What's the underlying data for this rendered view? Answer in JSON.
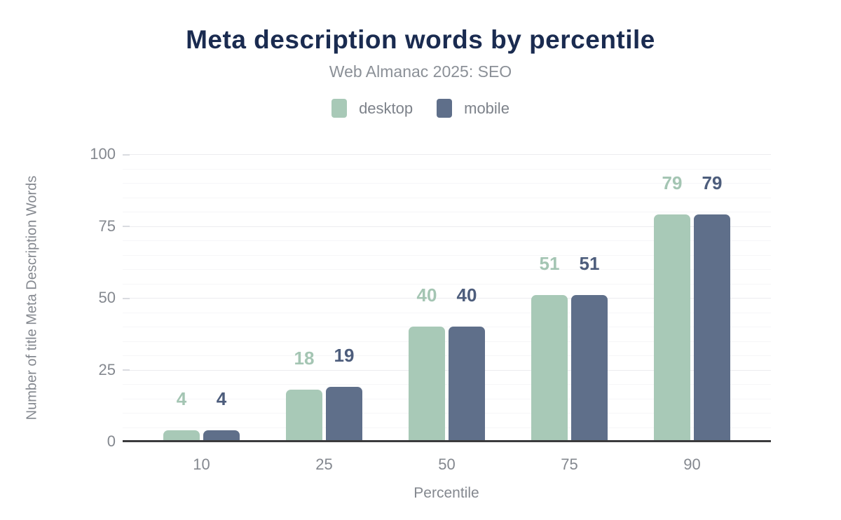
{
  "title": "Meta description words by percentile",
  "subtitle": "Web Almanac 2025: SEO",
  "legend": [
    {
      "label": "desktop",
      "color": "#a8c9b7"
    },
    {
      "label": "mobile",
      "color": "#5f6f8a"
    }
  ],
  "colors": {
    "title": "#1a2b50",
    "subtitle": "#8b9097",
    "axis_text": "#84888f",
    "axis_line": "#3b3b3d",
    "grid_major": "#ececef",
    "grid_minor": "#f6f6f8"
  },
  "chart_data": {
    "type": "bar",
    "categories": [
      "10",
      "25",
      "50",
      "75",
      "90"
    ],
    "series": [
      {
        "name": "desktop",
        "color": "#a8c9b7",
        "label_color": "#a4c5b3",
        "values": [
          4,
          18,
          40,
          51,
          79
        ]
      },
      {
        "name": "mobile",
        "color": "#5f6f8a",
        "label_color": "#4d5d7c",
        "values": [
          4,
          19,
          40,
          51,
          79
        ]
      }
    ],
    "title": "Meta description words by percentile",
    "subtitle": "Web Almanac 2025: SEO",
    "xlabel": "Percentile",
    "ylabel": "Number of title Meta Description Words",
    "ylim": [
      0,
      100
    ],
    "yticks": [
      0,
      25,
      50,
      75,
      100
    ],
    "minor_grid_step": 5,
    "grid": true,
    "legend_position": "top",
    "value_labels": true
  }
}
